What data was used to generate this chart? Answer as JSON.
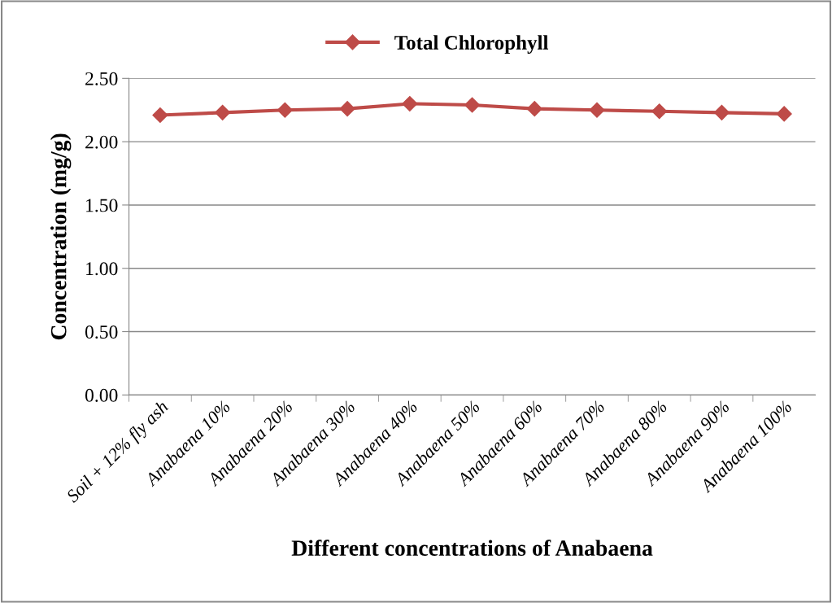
{
  "chart_data": {
    "type": "line",
    "xlabel": "Different concentrations of Anabaena",
    "ylabel": "Concentration (mg/g)",
    "categories": [
      "Soil + 12% fly ash",
      "Anabaena 10%",
      "Anabaena 20%",
      "Anabaena 30%",
      "Anabaena 40%",
      "Anabaena 50%",
      "Anabaena 60%",
      "Anabaena 70%",
      "Anabaena 80%",
      "Anabaena 90%",
      "Anabaena 100%"
    ],
    "series": [
      {
        "name": "Total Chlorophyll",
        "color": "#be4b48",
        "values": [
          2.21,
          2.23,
          2.25,
          2.26,
          2.3,
          2.29,
          2.26,
          2.25,
          2.24,
          2.23,
          2.22
        ]
      }
    ],
    "ylim": [
      0,
      2.5
    ],
    "yticks": [
      {
        "value": 0,
        "label": "0.00"
      },
      {
        "value": 0.5,
        "label": "0.50"
      },
      {
        "value": 1,
        "label": "1.00"
      },
      {
        "value": 1.5,
        "label": "1.50"
      },
      {
        "value": 2,
        "label": "2.00"
      },
      {
        "value": 2.5,
        "label": "2.50"
      }
    ],
    "grid": "y",
    "legend": "top",
    "marker": "diamond",
    "line_style": "solid"
  }
}
